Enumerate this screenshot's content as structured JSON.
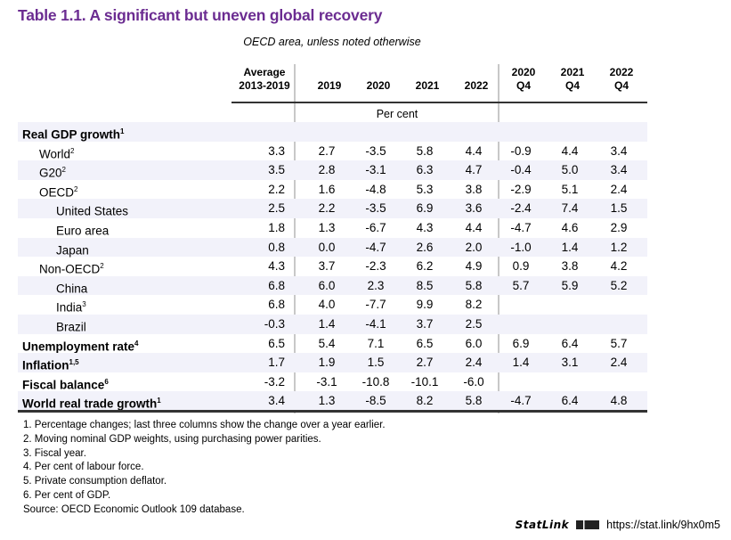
{
  "title": "Table 1.1. A significant but uneven global recovery",
  "subtitle": "OECD area, unless noted otherwise",
  "columns": [
    "Average\n2013-2019",
    "2019",
    "2020",
    "2021",
    "2022",
    "2020\nQ4",
    "2021\nQ4",
    "2022\nQ4"
  ],
  "unit_label": "Per cent",
  "rows": [
    {
      "label": "Real GDP growth",
      "sup": "1",
      "level": 0,
      "values": [
        "",
        "",
        "",
        "",
        "",
        "",
        "",
        ""
      ]
    },
    {
      "label": "World",
      "sup": "2",
      "level": 1,
      "values": [
        "3.3",
        "2.7",
        "-3.5",
        "5.8",
        "4.4",
        "-0.9",
        "4.4",
        "3.4"
      ]
    },
    {
      "label": "G20",
      "sup": "2",
      "level": 1,
      "values": [
        "3.5",
        "2.8",
        "-3.1",
        "6.3",
        "4.7",
        "-0.4",
        "5.0",
        "3.4"
      ]
    },
    {
      "label": "OECD",
      "sup": "2",
      "level": 1,
      "values": [
        "2.2",
        "1.6",
        "-4.8",
        "5.3",
        "3.8",
        "-2.9",
        "5.1",
        "2.4"
      ]
    },
    {
      "label": "United States",
      "sup": "",
      "level": 2,
      "values": [
        "2.5",
        "2.2",
        "-3.5",
        "6.9",
        "3.6",
        "-2.4",
        "7.4",
        "1.5"
      ]
    },
    {
      "label": "Euro area",
      "sup": "",
      "level": 2,
      "values": [
        "1.8",
        "1.3",
        "-6.7",
        "4.3",
        "4.4",
        "-4.7",
        "4.6",
        "2.9"
      ]
    },
    {
      "label": "Japan",
      "sup": "",
      "level": 2,
      "values": [
        "0.8",
        "0.0",
        "-4.7",
        "2.6",
        "2.0",
        "-1.0",
        "1.4",
        "1.2"
      ]
    },
    {
      "label": "Non-OECD",
      "sup": "2",
      "level": 1,
      "values": [
        "4.3",
        "3.7",
        "-2.3",
        "6.2",
        "4.9",
        "0.9",
        "3.8",
        "4.2"
      ]
    },
    {
      "label": "China",
      "sup": "",
      "level": 2,
      "values": [
        "6.8",
        "6.0",
        "2.3",
        "8.5",
        "5.8",
        "5.7",
        "5.9",
        "5.2"
      ]
    },
    {
      "label": "India",
      "sup": "3",
      "level": 2,
      "values": [
        "6.8",
        "4.0",
        "-7.7",
        "9.9",
        "8.2",
        "",
        "",
        ""
      ]
    },
    {
      "label": "Brazil",
      "sup": "",
      "level": 2,
      "values": [
        "-0.3",
        "1.4",
        "-4.1",
        "3.7",
        "2.5",
        "",
        "",
        ""
      ]
    },
    {
      "label": "Unemployment rate",
      "sup": "4",
      "level": 0,
      "values": [
        "6.5",
        "5.4",
        "7.1",
        "6.5",
        "6.0",
        "6.9",
        "6.4",
        "5.7"
      ]
    },
    {
      "label": "Inflation",
      "sup": "1,5",
      "level": 0,
      "values": [
        "1.7",
        "1.9",
        "1.5",
        "2.7",
        "2.4",
        "1.4",
        "3.1",
        "2.4"
      ]
    },
    {
      "label": "Fiscal balance",
      "sup": "6",
      "level": 0,
      "values": [
        "-3.2",
        "-3.1",
        "-10.8",
        "-10.1",
        "-6.0",
        "",
        "",
        ""
      ]
    },
    {
      "label": "World real trade growth",
      "sup": "1",
      "level": 0,
      "values": [
        "3.4",
        "1.3",
        "-8.5",
        "8.2",
        "5.8",
        "-4.7",
        "6.4",
        "4.8"
      ]
    }
  ],
  "notes": [
    "1.  Percentage changes; last three columns show the change over a year earlier.",
    "2.  Moving nominal GDP weights, using purchasing power parities.",
    "3.  Fiscal year.",
    "4.  Per cent of labour force.",
    "5.  Private consumption deflator.",
    "6.  Per cent of GDP.",
    "Source: OECD Economic Outlook 109 database."
  ],
  "statlink": {
    "brand": "StatLink",
    "url": "https://stat.link/9hx0m5"
  },
  "colors": {
    "title": "#6b2c91",
    "row_shade": "#f2f2fa"
  }
}
